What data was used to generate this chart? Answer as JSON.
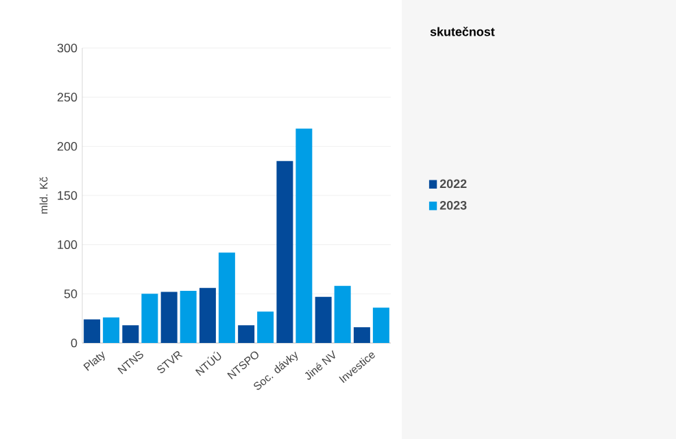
{
  "chart_data": {
    "type": "bar",
    "ylabel": "mld. Kč",
    "legend_title": "skutečnost",
    "categories": [
      "Platy",
      "NTNS",
      "STVR",
      "NTÚÚ",
      "NTSPO",
      "Soc. dávky",
      "Jiné NV",
      "Investice"
    ],
    "series": [
      {
        "name": "2022",
        "color": "#034a9a",
        "values": [
          24,
          18,
          52,
          56,
          18,
          185,
          47,
          16
        ]
      },
      {
        "name": "2023",
        "color": "#009ee6",
        "values": [
          26,
          50,
          53,
          92,
          32,
          218,
          58,
          36
        ]
      }
    ],
    "ylim": [
      0,
      300
    ],
    "yticks": [
      0,
      50,
      100,
      150,
      200,
      250,
      300
    ],
    "grid": "y",
    "legend": "right"
  }
}
